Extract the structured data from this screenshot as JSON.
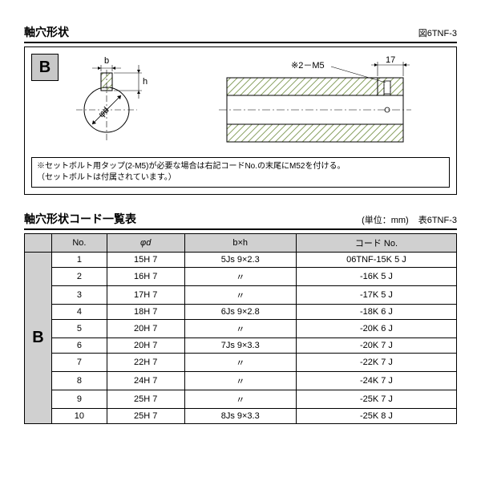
{
  "diagram_section": {
    "title": "軸穴形状",
    "ref": "図6TNF-3",
    "category_label": "B",
    "dims": {
      "b": "b",
      "h": "h",
      "phi_d": "φd",
      "tap": "※2－M5",
      "len": "17"
    },
    "note_line1": "※セットボルト用タップ(2-M5)が必要な場合は右記コードNo.の末尾にM52を付ける。",
    "note_line2": "（セットボルトは付属されています。）",
    "colors": {
      "hatch": "#88a060",
      "line": "#000000",
      "center": "#000000"
    }
  },
  "table_section": {
    "title": "軸穴形状コード一覧表",
    "unit": "(単位：mm)",
    "ref": "表6TNF-3",
    "category_label": "B",
    "headers": {
      "no": "No.",
      "phi_d": "φd",
      "bxh": "b×h",
      "code": "コード No."
    },
    "rows": [
      {
        "no": "1",
        "phi_d": "15H 7",
        "bxh": "5Js 9×2.3",
        "code": "06TNF-15K 5 J"
      },
      {
        "no": "2",
        "phi_d": "16H 7",
        "bxh": "〃",
        "code": "-16K 5 J"
      },
      {
        "no": "3",
        "phi_d": "17H 7",
        "bxh": "〃",
        "code": "-17K 5 J"
      },
      {
        "no": "4",
        "phi_d": "18H 7",
        "bxh": "6Js 9×2.8",
        "code": "-18K 6 J"
      },
      {
        "no": "5",
        "phi_d": "20H 7",
        "bxh": "〃",
        "code": "-20K 6 J"
      },
      {
        "no": "6",
        "phi_d": "20H 7",
        "bxh": "7Js 9×3.3",
        "code": "-20K 7 J"
      },
      {
        "no": "7",
        "phi_d": "22H 7",
        "bxh": "〃",
        "code": "-22K 7 J"
      },
      {
        "no": "8",
        "phi_d": "24H 7",
        "bxh": "〃",
        "code": "-24K 7 J"
      },
      {
        "no": "9",
        "phi_d": "25H 7",
        "bxh": "〃",
        "code": "-25K 7 J"
      },
      {
        "no": "10",
        "phi_d": "25H 7",
        "bxh": "8Js 9×3.3",
        "code": "-25K 8 J"
      }
    ]
  }
}
